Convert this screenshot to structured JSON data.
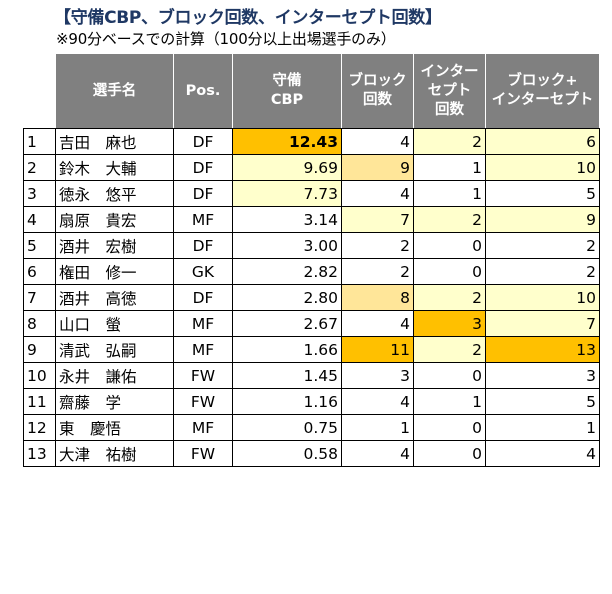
{
  "title": "【守備CBP、ブロック回数、インターセプト回数】",
  "subtitle": "※90分ベースでの計算（100分以上出場選手のみ）",
  "colors": {
    "header_bg": "#808080",
    "title_color": "#1f3864",
    "highlight_strong": "#ffc000",
    "highlight_mid": "#ffe699",
    "highlight_light": "#ffffcc"
  },
  "header": {
    "name": "選手名",
    "pos": "Pos.",
    "cbp_1": "守備",
    "cbp_2": "CBP",
    "block_1": "ブロック",
    "block_2": "回数",
    "int_1": "インター",
    "int_2": "セプト",
    "int_3": "回数",
    "sum_1": "ブロック+",
    "sum_2": "インターセプト"
  },
  "rows": [
    {
      "rank": "1",
      "name": "吉田　麻也",
      "pos": "DF",
      "cbp": "12.43",
      "blocks": "4",
      "interceptions": "2",
      "total": "6",
      "hl": [
        "strong",
        "",
        "light",
        "light"
      ]
    },
    {
      "rank": "2",
      "name": "鈴木　大輔",
      "pos": "DF",
      "cbp": "9.69",
      "blocks": "9",
      "interceptions": "1",
      "total": "10",
      "hl": [
        "light",
        "mid",
        "",
        "light"
      ]
    },
    {
      "rank": "3",
      "name": "徳永　悠平",
      "pos": "DF",
      "cbp": "7.73",
      "blocks": "4",
      "interceptions": "1",
      "total": "5",
      "hl": [
        "light",
        "",
        "",
        ""
      ]
    },
    {
      "rank": "4",
      "name": "扇原　貴宏",
      "pos": "MF",
      "cbp": "3.14",
      "blocks": "7",
      "interceptions": "2",
      "total": "9",
      "hl": [
        "",
        "light",
        "light",
        "light"
      ]
    },
    {
      "rank": "5",
      "name": "酒井　宏樹",
      "pos": "DF",
      "cbp": "3.00",
      "blocks": "2",
      "interceptions": "0",
      "total": "2",
      "hl": [
        "",
        "",
        "",
        ""
      ]
    },
    {
      "rank": "6",
      "name": "権田　修一",
      "pos": "GK",
      "cbp": "2.82",
      "blocks": "2",
      "interceptions": "0",
      "total": "2",
      "hl": [
        "",
        "",
        "",
        ""
      ]
    },
    {
      "rank": "7",
      "name": "酒井　高徳",
      "pos": "DF",
      "cbp": "2.80",
      "blocks": "8",
      "interceptions": "2",
      "total": "10",
      "hl": [
        "",
        "mid",
        "light",
        "light"
      ]
    },
    {
      "rank": "8",
      "name": "山口　螢",
      "pos": "MF",
      "cbp": "2.67",
      "blocks": "4",
      "interceptions": "3",
      "total": "7",
      "hl": [
        "",
        "",
        "strong",
        "light"
      ]
    },
    {
      "rank": "9",
      "name": "清武　弘嗣",
      "pos": "MF",
      "cbp": "1.66",
      "blocks": "11",
      "interceptions": "2",
      "total": "13",
      "hl": [
        "",
        "strong",
        "light",
        "strong"
      ]
    },
    {
      "rank": "10",
      "name": "永井　謙佑",
      "pos": "FW",
      "cbp": "1.45",
      "blocks": "3",
      "interceptions": "0",
      "total": "3",
      "hl": [
        "",
        "",
        "",
        ""
      ]
    },
    {
      "rank": "11",
      "name": "齋藤　学",
      "pos": "FW",
      "cbp": "1.16",
      "blocks": "4",
      "interceptions": "1",
      "total": "5",
      "hl": [
        "",
        "",
        "",
        ""
      ]
    },
    {
      "rank": "12",
      "name": "東　慶悟",
      "pos": "MF",
      "cbp": "0.75",
      "blocks": "1",
      "interceptions": "0",
      "total": "1",
      "hl": [
        "",
        "",
        "",
        ""
      ]
    },
    {
      "rank": "13",
      "name": "大津　祐樹",
      "pos": "FW",
      "cbp": "0.58",
      "blocks": "4",
      "interceptions": "0",
      "total": "4",
      "hl": [
        "",
        "",
        "",
        ""
      ]
    }
  ],
  "chart_data": {
    "type": "table",
    "title": "【守備CBP、ブロック回数、インターセプト回数】",
    "subtitle": "※90分ベースでの計算（100分以上出場選手のみ）",
    "columns": [
      "選手名",
      "Pos.",
      "守備CBP",
      "ブロック回数",
      "インターセプト回数",
      "ブロック+インターセプト"
    ],
    "rows": [
      [
        "吉田　麻也",
        "DF",
        12.43,
        4,
        2,
        6
      ],
      [
        "鈴木　大輔",
        "DF",
        9.69,
        9,
        1,
        10
      ],
      [
        "徳永　悠平",
        "DF",
        7.73,
        4,
        1,
        5
      ],
      [
        "扇原　貴宏",
        "MF",
        3.14,
        7,
        2,
        9
      ],
      [
        "酒井　宏樹",
        "DF",
        3.0,
        2,
        0,
        2
      ],
      [
        "権田　修一",
        "GK",
        2.82,
        2,
        0,
        2
      ],
      [
        "酒井　高徳",
        "DF",
        2.8,
        8,
        2,
        10
      ],
      [
        "山口　螢",
        "MF",
        2.67,
        4,
        3,
        7
      ],
      [
        "清武　弘嗣",
        "MF",
        1.66,
        11,
        2,
        13
      ],
      [
        "永井　謙佑",
        "FW",
        1.45,
        3,
        0,
        3
      ],
      [
        "齋藤　学",
        "FW",
        1.16,
        4,
        1,
        5
      ],
      [
        "東　慶悟",
        "MF",
        0.75,
        1,
        0,
        1
      ],
      [
        "大津　祐樹",
        "FW",
        0.58,
        4,
        0,
        4
      ]
    ]
  }
}
